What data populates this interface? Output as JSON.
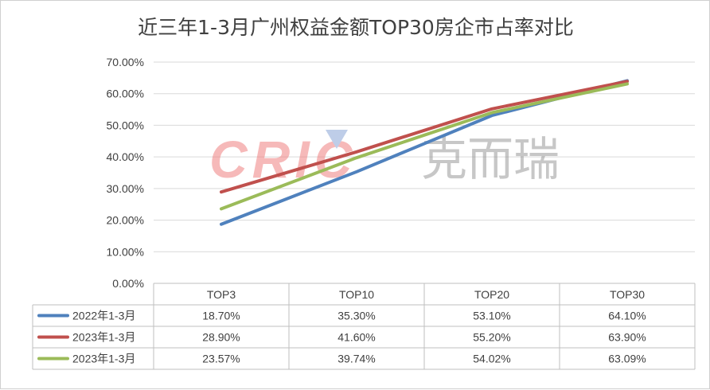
{
  "chart_data": {
    "type": "line",
    "title": "近三年1-3月广州权益金额TOP30房企市占率对比",
    "categories": [
      "TOP3",
      "TOP10",
      "TOP20",
      "TOP30"
    ],
    "ylim": [
      0,
      70
    ],
    "yticks": [
      "0.00%",
      "10.00%",
      "20.00%",
      "30.00%",
      "40.00%",
      "50.00%",
      "60.00%",
      "70.00%"
    ],
    "grid": true,
    "legend": "in data table (left)",
    "series": [
      {
        "name": "2022年1-3月",
        "color": "#4f81bd",
        "values": [
          18.7,
          35.3,
          53.1,
          64.1
        ],
        "labels": [
          "18.70%",
          "35.30%",
          "53.10%",
          "64.10%"
        ]
      },
      {
        "name": "2023年1-3月",
        "color": "#c0504d",
        "values": [
          28.9,
          41.6,
          55.2,
          63.9
        ],
        "labels": [
          "28.90%",
          "41.60%",
          "55.20%",
          "63.90%"
        ]
      },
      {
        "name": "2023年1-3月",
        "color": "#9bbb59",
        "values": [
          23.57,
          39.74,
          54.02,
          63.09
        ],
        "labels": [
          "23.57%",
          "39.74%",
          "54.02%",
          "63.09%"
        ]
      }
    ]
  },
  "watermark": {
    "latin": "CRIC",
    "cjk": "克而瑞"
  }
}
